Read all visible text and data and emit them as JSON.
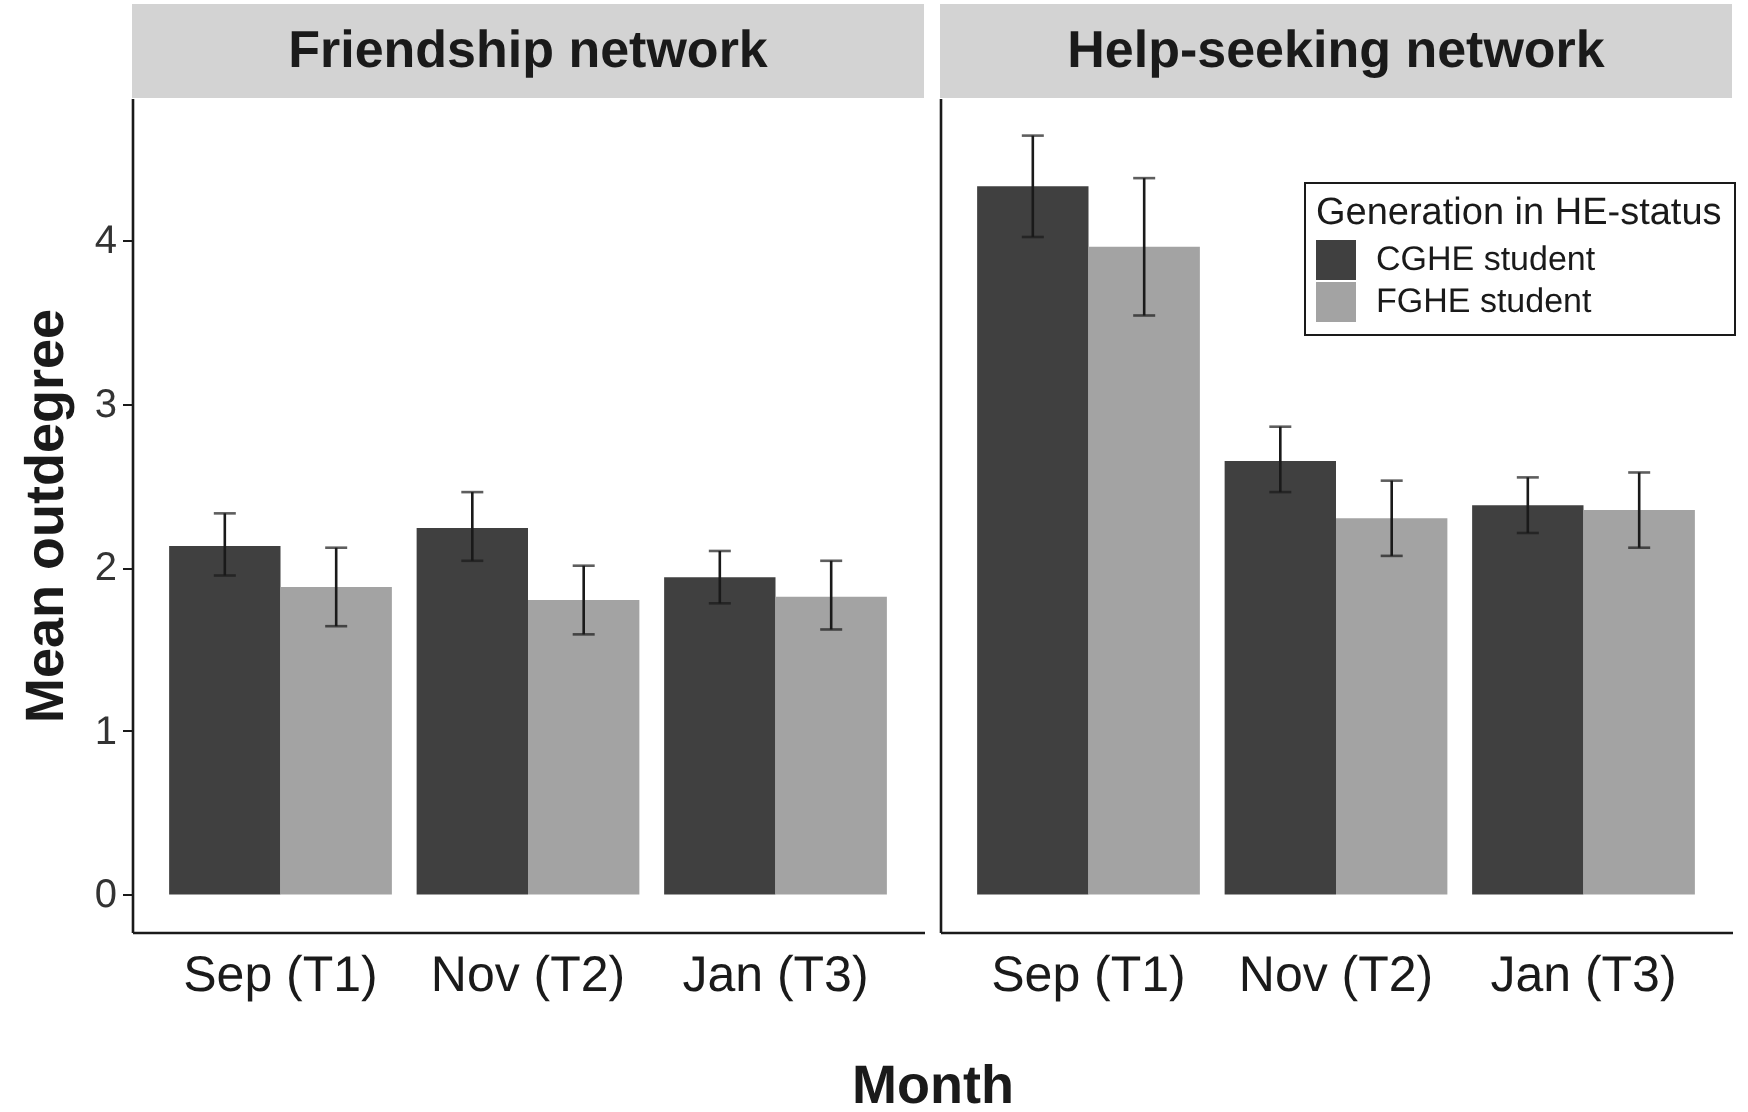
{
  "chart_data": [
    {
      "type": "bar",
      "title": "Friendship network",
      "xlabel": "Month",
      "ylabel": "Mean outdegree",
      "categories": [
        "Sep (T1)",
        "Nov (T2)",
        "Jan (T3)"
      ],
      "series": [
        {
          "color": "#404040",
          "values": [
            2.13,
            2.24,
            1.94
          ],
          "errors": [
            [
              1.95,
              2.33
            ],
            [
              2.04,
              2.46
            ],
            [
              1.78,
              2.1
            ]
          ]
        },
        {
          "color": "#a3a3a3",
          "values": [
            1.88,
            1.8,
            1.82
          ],
          "errors": [
            [
              1.64,
              2.12
            ],
            [
              1.59,
              2.01
            ],
            [
              1.62,
              2.04
            ]
          ]
        }
      ],
      "ylim": [
        -0.23,
        4.87
      ],
      "yticks": [
        0,
        1,
        2,
        3,
        4
      ]
    },
    {
      "type": "bar",
      "title": "Help-seeking network",
      "categories": [
        "Sep (T1)",
        "Nov (T2)",
        "Jan (T3)"
      ],
      "series": [
        {
          "name": "CGHE student",
          "color": "#404040",
          "values": [
            4.33,
            2.65,
            2.38
          ],
          "errors": [
            [
              4.02,
              4.64
            ],
            [
              2.46,
              2.86
            ],
            [
              2.21,
              2.55
            ]
          ]
        },
        {
          "name": "FGHE student",
          "color": "#a3a3a3",
          "values": [
            3.96,
            2.3,
            2.35
          ],
          "errors": [
            [
              3.54,
              4.38
            ],
            [
              2.07,
              2.53
            ],
            [
              2.12,
              2.58
            ]
          ]
        }
      ],
      "ylim": [
        -0.23,
        4.87
      ],
      "yticks": [
        0,
        1,
        2,
        3,
        4
      ],
      "tick_labels": "x",
      "legend": "top right",
      "legend_title": "Generation in HE-status"
    }
  ]
}
